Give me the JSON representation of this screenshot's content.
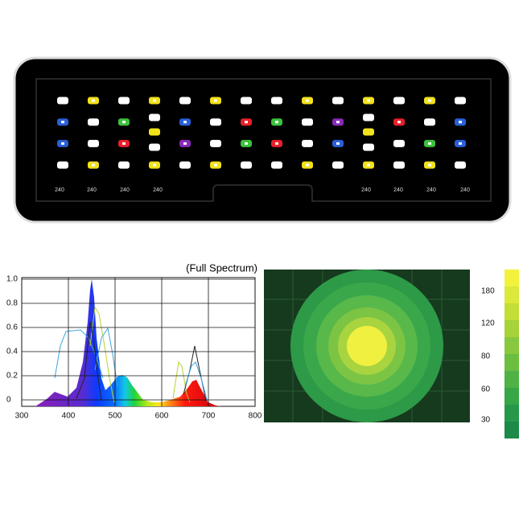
{
  "fixture": {
    "driver_labels": [
      "240",
      "240",
      "240",
      "240",
      "240",
      "240",
      "240",
      "240"
    ]
  },
  "spectrum": {
    "title": "(Full Spectrum)",
    "yticks": [
      0,
      0.2,
      0.4,
      0.6,
      0.8,
      {
        "value": 1,
        "label": "1.0"
      }
    ],
    "xticks": [
      300,
      400,
      500,
      600,
      700,
      800
    ]
  },
  "par_map": {
    "colorbar_labels": [
      "180",
      "120",
      "80",
      "60",
      "30"
    ]
  }
}
